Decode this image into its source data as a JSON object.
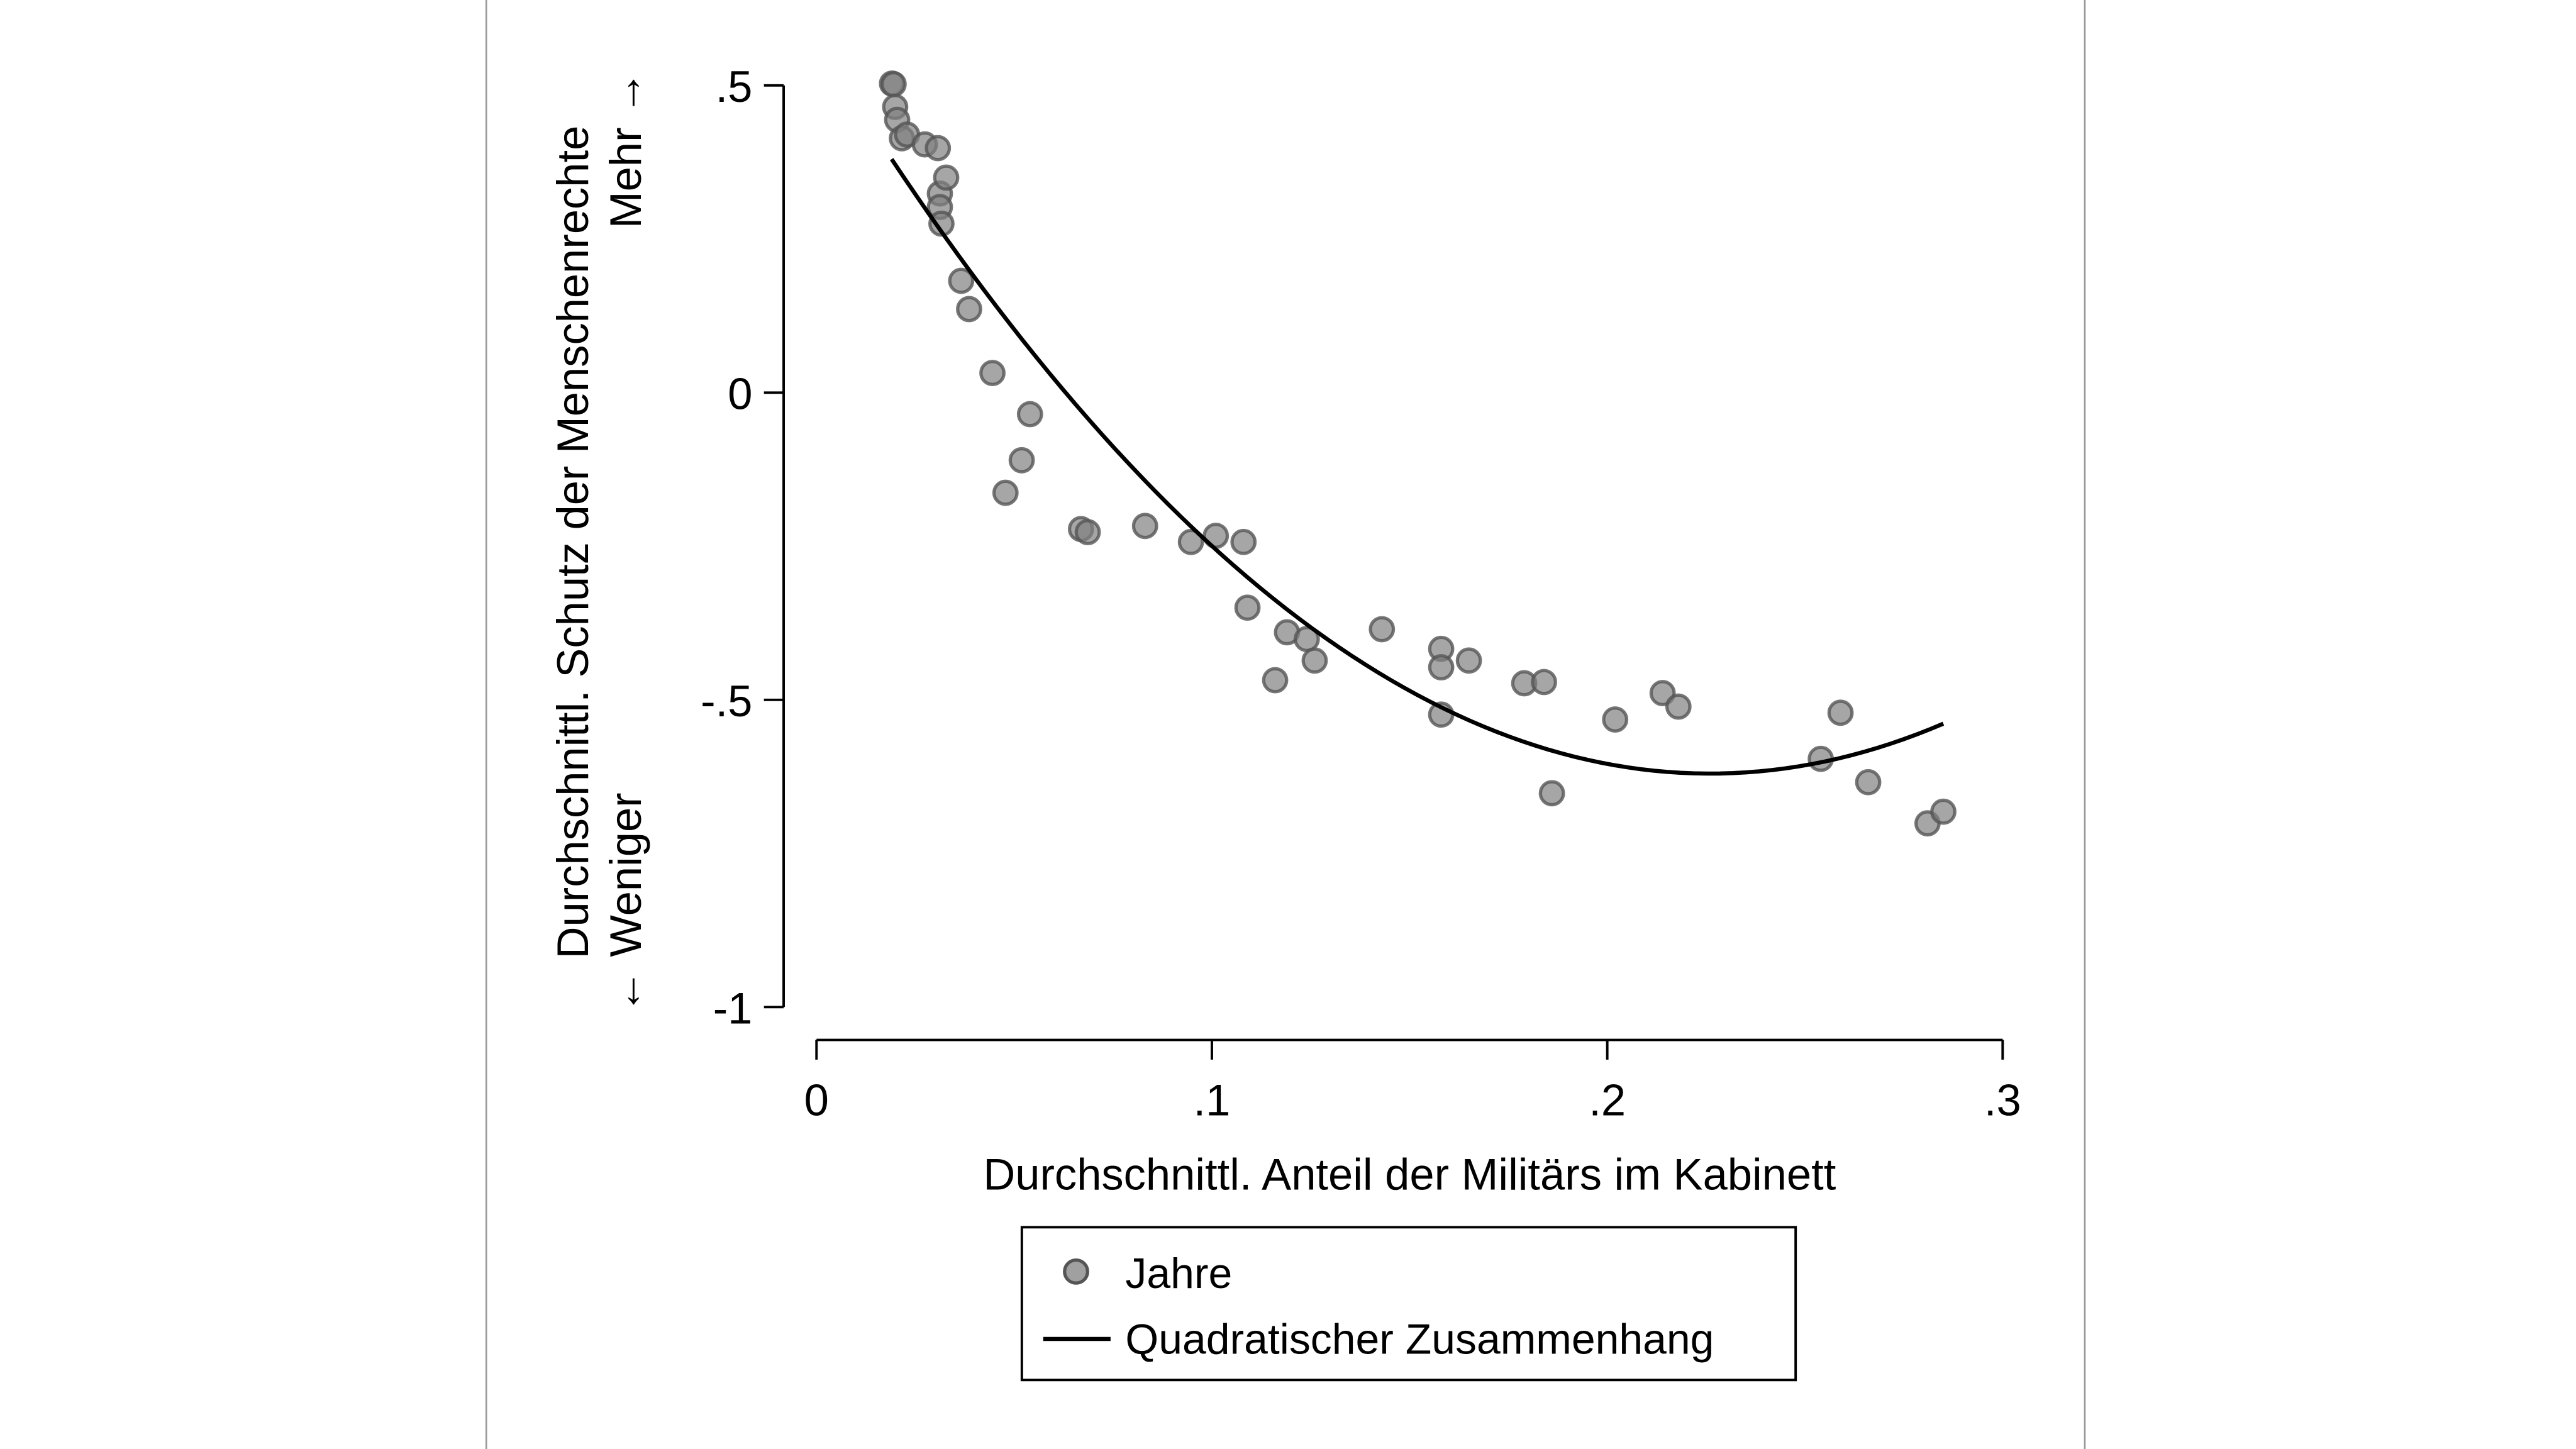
{
  "chart_data": {
    "type": "scatter",
    "xlabel": "Durchschnittl. Anteil der Militärs im Kabinett",
    "ylabel_line1": "Durchschnittl. Schutz der Menschenrechte",
    "ylabel_line2_low": "← Weniger",
    "ylabel_line2_high": "Mehr →",
    "xlim": [
      0,
      0.3
    ],
    "ylim": [
      -1,
      0.5
    ],
    "xticks": [
      {
        "v": 0,
        "label": "0"
      },
      {
        "v": 0.1,
        "label": ".1"
      },
      {
        "v": 0.2,
        "label": ".2"
      },
      {
        "v": 0.3,
        "label": ".3"
      }
    ],
    "yticks": [
      {
        "v": 0.5,
        "label": ".5"
      },
      {
        "v": 0,
        "label": "0"
      },
      {
        "v": -0.5,
        "label": "-.5"
      },
      {
        "v": -1,
        "label": "-1"
      }
    ],
    "grid": false,
    "legend_position": "bottom",
    "series": [
      {
        "name": "Jahre",
        "type": "scatter",
        "color": "#808080",
        "points": [
          [
            0.0191,
            0.503
          ],
          [
            0.0195,
            0.502
          ],
          [
            0.0199,
            0.465
          ],
          [
            0.0204,
            0.444
          ],
          [
            0.0216,
            0.414
          ],
          [
            0.0229,
            0.42
          ],
          [
            0.0274,
            0.404
          ],
          [
            0.0307,
            0.398
          ],
          [
            0.0312,
            0.324
          ],
          [
            0.0312,
            0.302
          ],
          [
            0.0316,
            0.275
          ],
          [
            0.0328,
            0.35
          ],
          [
            0.0366,
            0.182
          ],
          [
            0.0386,
            0.136
          ],
          [
            0.0445,
            0.032
          ],
          [
            0.0478,
            -0.163
          ],
          [
            0.0519,
            -0.11
          ],
          [
            0.054,
            -0.035
          ],
          [
            0.0669,
            -0.222
          ],
          [
            0.0686,
            -0.227
          ],
          [
            0.0831,
            -0.217
          ],
          [
            0.0947,
            -0.243
          ],
          [
            0.101,
            -0.233
          ],
          [
            0.108,
            -0.243
          ],
          [
            0.109,
            -0.35
          ],
          [
            0.116,
            -0.468
          ],
          [
            0.119,
            -0.39
          ],
          [
            0.124,
            -0.401
          ],
          [
            0.126,
            -0.436
          ],
          [
            0.143,
            -0.385
          ],
          [
            0.158,
            -0.524
          ],
          [
            0.158,
            -0.417
          ],
          [
            0.158,
            -0.447
          ],
          [
            0.165,
            -0.436
          ],
          [
            0.179,
            -0.473
          ],
          [
            0.184,
            -0.471
          ],
          [
            0.186,
            -0.652
          ],
          [
            0.202,
            -0.532
          ],
          [
            0.214,
            -0.489
          ],
          [
            0.218,
            -0.511
          ],
          [
            0.254,
            -0.596
          ],
          [
            0.259,
            -0.521
          ],
          [
            0.266,
            -0.634
          ],
          [
            0.281,
            -0.701
          ],
          [
            0.285,
            -0.682
          ]
        ]
      },
      {
        "name": "Quadratischer Zusammenhang",
        "type": "line",
        "color": "#000000",
        "fit": "quadratic",
        "x_range": [
          0.019,
          0.285
        ],
        "vertex": [
          0.226,
          -0.62
        ],
        "y_at_start": 0.38
      }
    ]
  }
}
